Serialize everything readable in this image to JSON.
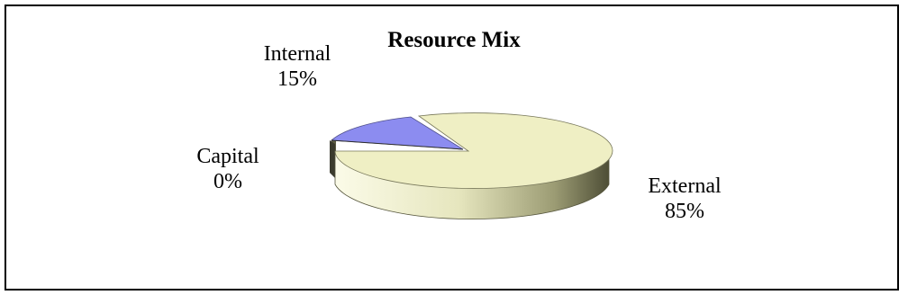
{
  "chart_data": {
    "type": "pie",
    "title": "Resource Mix",
    "slices": [
      {
        "label": "External",
        "value": 85,
        "pct_label": "85%",
        "color": "#EFEFC4"
      },
      {
        "label": "Internal",
        "value": 15,
        "pct_label": "15%",
        "color": "#8C8CF0"
      },
      {
        "label": "Capital",
        "value": 0,
        "pct_label": "0%",
        "color": "#6E6E4E"
      }
    ],
    "style": "3d-exploded",
    "legend": "none"
  }
}
